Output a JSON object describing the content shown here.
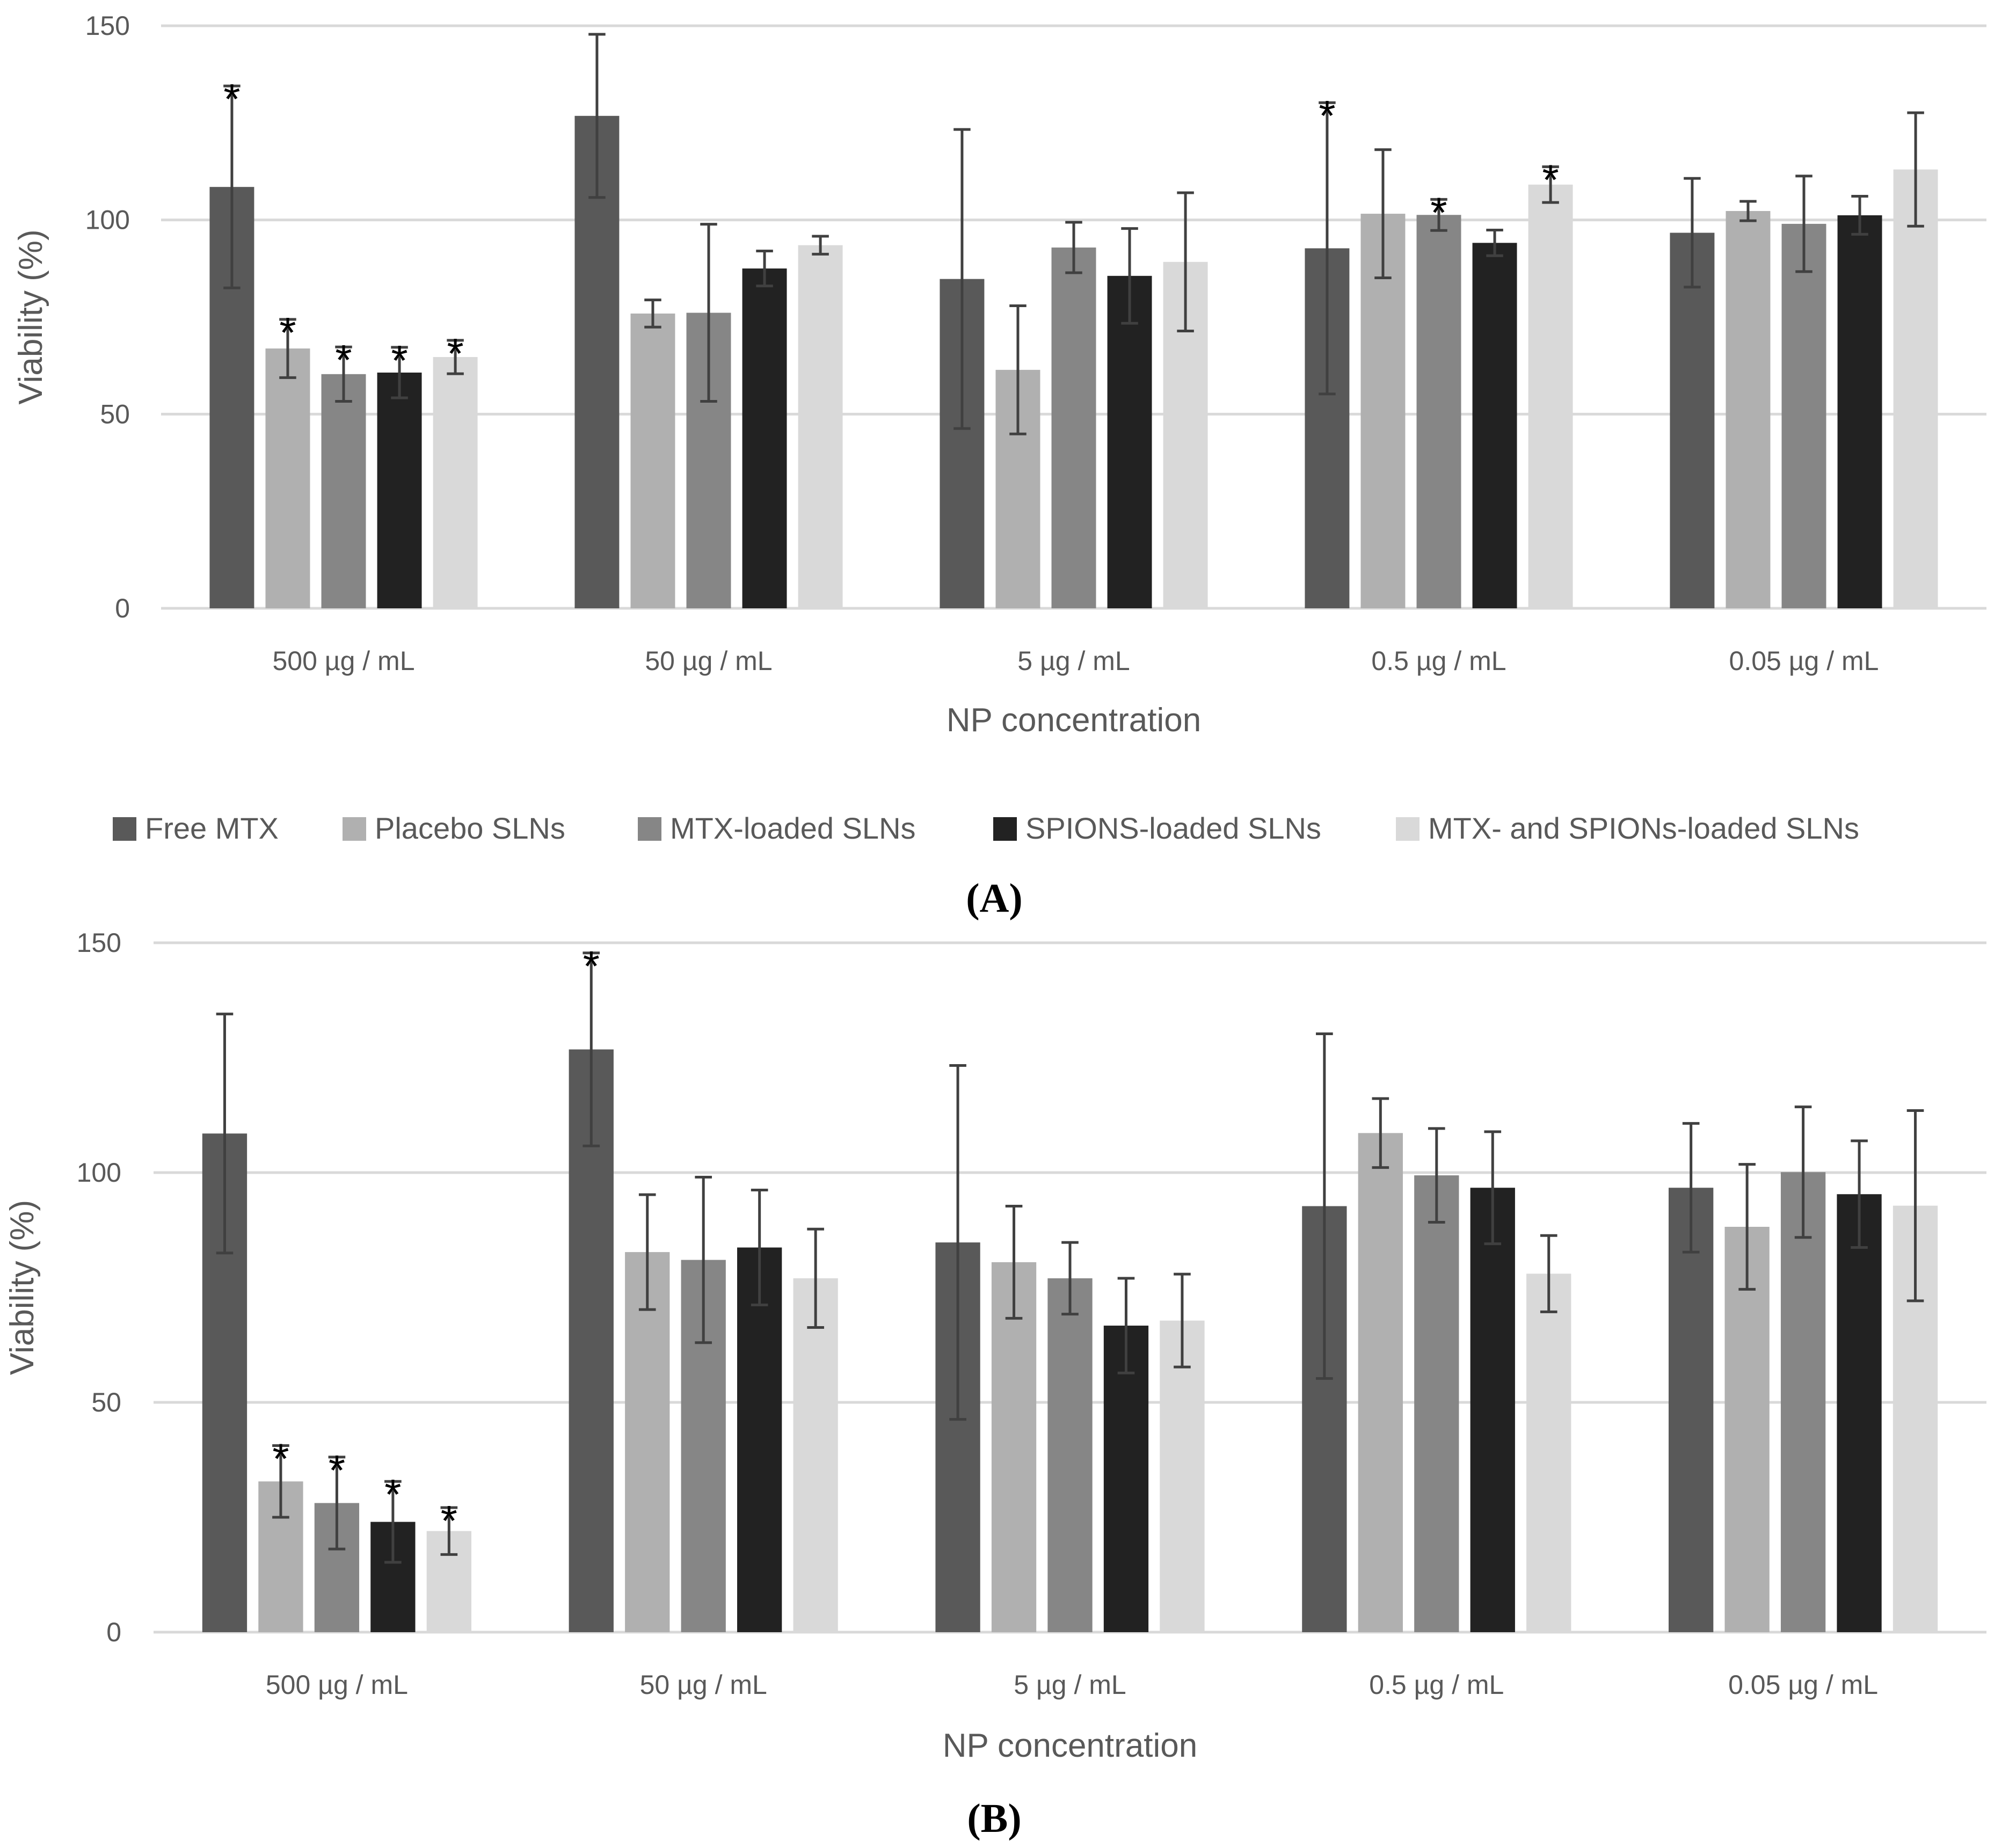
{
  "colors": {
    "free_mtx": "#595959",
    "placebo": "#b0b0b0",
    "mtx_loaded": "#868686",
    "spions_loaded": "#222222",
    "mtx_spions_loaded": "#d9d9d9",
    "grid": "#d9d9d9",
    "error_bar": "#404040"
  },
  "legend": [
    "Free MTX",
    "Placebo SLNs",
    "MTX-loaded SLNs",
    "SPIONS-loaded SLNs",
    "MTX- and SPIONs-loaded SLNs"
  ],
  "chart_data": [
    {
      "type": "bar",
      "panel_label": "(A)",
      "xlabel": "NP concentration",
      "ylabel": "Viability (%)",
      "ylim": [
        0,
        150
      ],
      "yticks": [
        "0",
        "50",
        "100",
        "150"
      ],
      "grid": true,
      "legend_position": "bottom",
      "categories": [
        "500 µg / mL",
        "50 µg / mL",
        "5 µg / mL",
        "0.5 µg / mL",
        "0.05 µg / mL"
      ],
      "series": [
        {
          "name": "Free MTX",
          "values": [
            108.5,
            126.8,
            84.8,
            92.7,
            96.7
          ],
          "errors": [
            26,
            21,
            38.5,
            37.5,
            14
          ],
          "significant": [
            true,
            false,
            false,
            true,
            false
          ]
        },
        {
          "name": "Placebo SLNs",
          "values": [
            66.9,
            75.9,
            61.4,
            101.6,
            102.3
          ],
          "errors": [
            7.5,
            3.5,
            16.5,
            16.5,
            2.5
          ],
          "significant": [
            true,
            false,
            false,
            false,
            false
          ]
        },
        {
          "name": "MTX-loaded SLNs",
          "values": [
            60.3,
            76.1,
            92.9,
            101.3,
            99.0
          ],
          "errors": [
            7,
            22.8,
            6.5,
            4,
            12.3
          ],
          "significant": [
            true,
            false,
            false,
            true,
            false
          ]
        },
        {
          "name": "SPIONS-loaded SLNs",
          "values": [
            60.7,
            87.5,
            85.6,
            94.1,
            101.2
          ],
          "errors": [
            6.5,
            4.5,
            12.2,
            3.3,
            4.9
          ],
          "significant": [
            true,
            false,
            false,
            false,
            false
          ]
        },
        {
          "name": "MTX- and SPIONs-loaded SLNs",
          "values": [
            64.7,
            93.5,
            89.2,
            109.1,
            113.0
          ],
          "errors": [
            4.3,
            2.3,
            17.8,
            4.6,
            14.6
          ],
          "significant": [
            true,
            false,
            false,
            true,
            false
          ]
        }
      ]
    },
    {
      "type": "bar",
      "panel_label": "(B)",
      "xlabel": "NP concentration",
      "ylabel": "Viability (%)",
      "ylim": [
        0,
        150
      ],
      "yticks": [
        "0",
        "50",
        "100",
        "150"
      ],
      "grid": true,
      "categories": [
        "500 µg / mL",
        "50 µg / mL",
        "5 µg / mL",
        "0.5 µg / mL",
        "0.05 µg / mL"
      ],
      "series": [
        {
          "name": "Free MTX",
          "values": [
            108.5,
            126.8,
            84.8,
            92.7,
            96.7
          ],
          "errors": [
            26,
            21,
            38.5,
            37.5,
            14
          ],
          "significant": [
            false,
            true,
            false,
            false,
            false
          ]
        },
        {
          "name": "Placebo SLNs",
          "values": [
            32.8,
            82.7,
            80.5,
            108.6,
            88.2
          ],
          "errors": [
            7.8,
            12.5,
            12.2,
            7.5,
            13.6
          ],
          "significant": [
            true,
            false,
            false,
            false,
            false
          ]
        },
        {
          "name": "MTX-loaded SLNs",
          "values": [
            28.1,
            81.0,
            77.0,
            99.4,
            100.1
          ],
          "errors": [
            10,
            18,
            7.8,
            10.2,
            14.2
          ],
          "significant": [
            true,
            false,
            false,
            false,
            false
          ]
        },
        {
          "name": "SPIONS-loaded SLNs",
          "values": [
            24.0,
            83.7,
            66.7,
            96.7,
            95.3
          ],
          "errors": [
            8.8,
            12.5,
            10.3,
            12.2,
            11.6
          ],
          "significant": [
            true,
            false,
            false,
            false,
            false
          ]
        },
        {
          "name": "MTX- and SPIONs-loaded SLNs",
          "values": [
            22.0,
            77.0,
            67.8,
            78.0,
            92.8
          ],
          "errors": [
            5.1,
            10.7,
            10.1,
            8.3,
            20.7
          ],
          "significant": [
            true,
            false,
            false,
            false,
            false
          ]
        }
      ]
    }
  ]
}
